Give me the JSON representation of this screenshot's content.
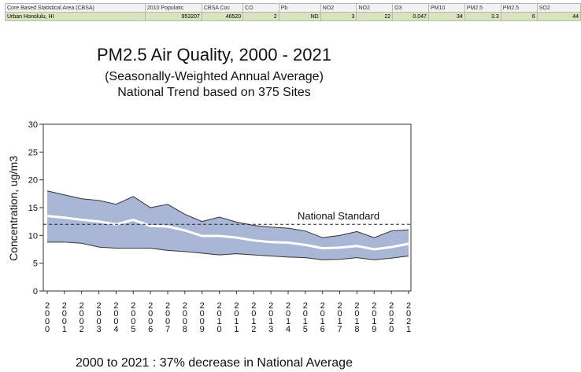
{
  "table": {
    "headers": [
      "Core Based Statistical Area (CBSA)",
      "2010 Populatic",
      "CBSA Coc",
      "CO",
      "Pb",
      "NO2",
      "NO2",
      "O3",
      "PM10",
      "PM2.5",
      "PM2.5",
      "SO2"
    ],
    "rows": [
      [
        "Urban Honolulu, HI",
        "953207",
        "46520",
        "2",
        "ND",
        "3",
        "22",
        "0.047",
        "34",
        "3.3",
        "6",
        "44"
      ]
    ]
  },
  "chart_data": {
    "type": "band",
    "title": "PM2.5 Air Quality, 2000 - 2021",
    "subtitle": [
      "(Seasonally-Weighted Annual Average)",
      "National Trend based on 375 Sites"
    ],
    "y_label": "Concentration, ug/m3",
    "footer": "2000 to 2021 :  37% decrease in National Average",
    "categories": [
      "2000",
      "2001",
      "2002",
      "2003",
      "2004",
      "2005",
      "2006",
      "2007",
      "2008",
      "2009",
      "2010",
      "2011",
      "2012",
      "2013",
      "2014",
      "2015",
      "2016",
      "2017",
      "2018",
      "2019",
      "2020",
      "2021"
    ],
    "series": [
      {
        "color": "#333333",
        "values": [
          18,
          17.3,
          16.6,
          16.3,
          15.6,
          17.0,
          15.0,
          15.6,
          13.8,
          12.5,
          13.3,
          12.4,
          11.8,
          11.5,
          11.3,
          10.8,
          9.6,
          10.0,
          10.7,
          9.6,
          10.8,
          11.0
        ]
      },
      {
        "color": "#ffffff",
        "values": [
          13.5,
          13.2,
          12.8,
          12.5,
          12.0,
          12.8,
          11.7,
          11.6,
          10.9,
          9.9,
          9.9,
          9.6,
          9.1,
          8.8,
          8.7,
          8.3,
          7.7,
          7.8,
          8.1,
          7.5,
          7.9,
          8.5
        ]
      },
      {
        "color": "#333333",
        "values": [
          8.8,
          8.8,
          8.6,
          7.9,
          7.7,
          7.7,
          7.7,
          7.3,
          7.1,
          6.8,
          6.5,
          6.7,
          6.5,
          6.3,
          6.1,
          6.0,
          5.6,
          5.7,
          6.0,
          5.6,
          5.9,
          6.3
        ]
      }
    ],
    "band_color": "#a9b6d6",
    "standard": {
      "value": 12,
      "label": "National Standard"
    },
    "ylim": [
      0,
      30
    ],
    "yticks": [
      0,
      5,
      10,
      15,
      20,
      25,
      30
    ]
  }
}
